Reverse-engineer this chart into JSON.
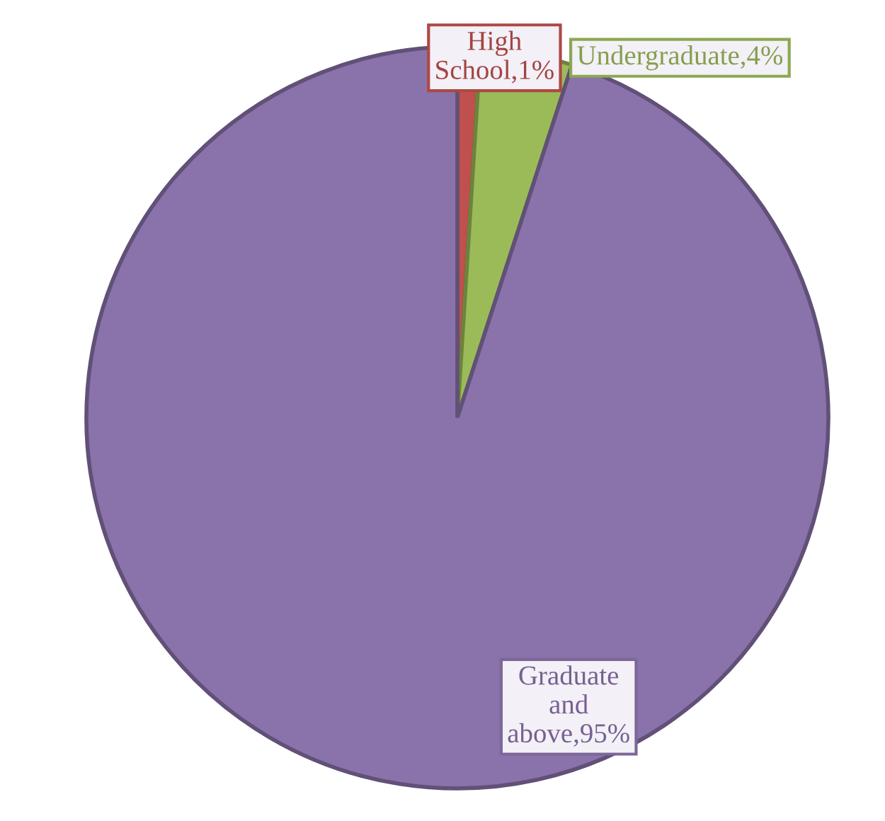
{
  "chart_data": {
    "type": "pie",
    "categories": [
      "High School",
      "Undergraduate",
      "Graduate and above"
    ],
    "values": [
      1,
      4,
      95
    ],
    "value_labels": [
      ",1%",
      ",4%",
      ",95%"
    ],
    "colors": [
      "#c0504d",
      "#9bbb59",
      "#8a72aa"
    ]
  }
}
